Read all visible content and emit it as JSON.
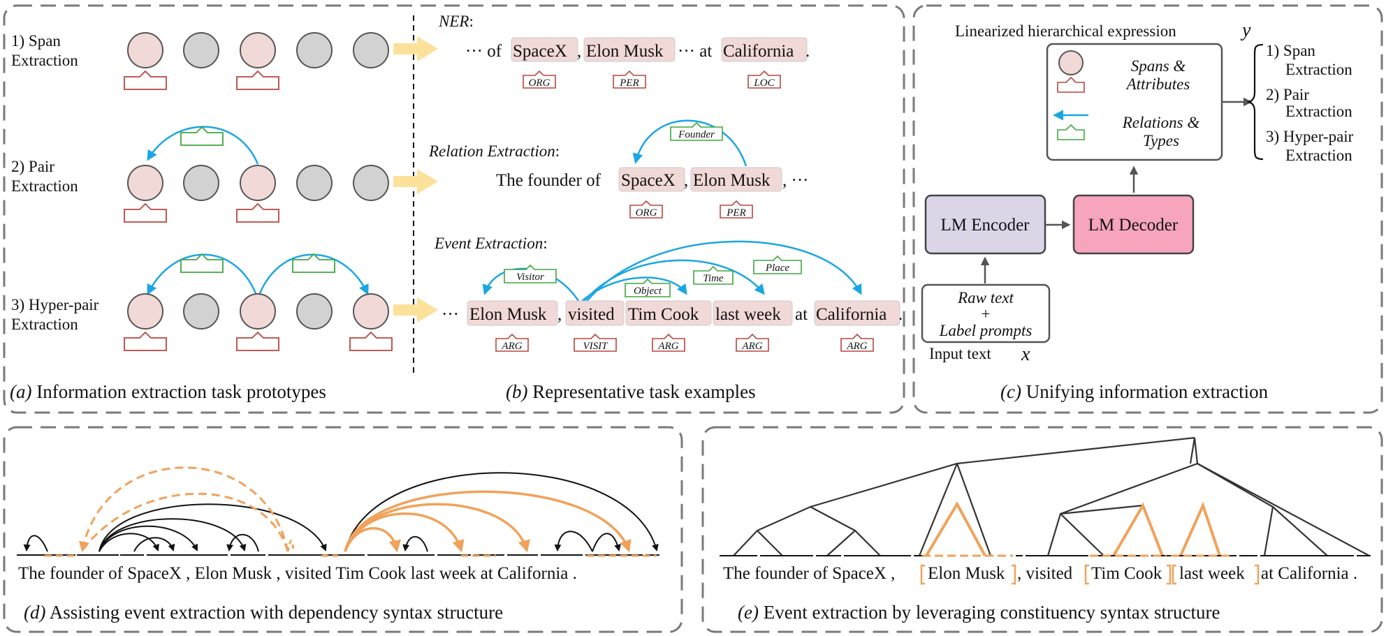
{
  "panel_a": {
    "caption_label": "(a)",
    "caption_text": "Information extraction task prototypes",
    "row1": [
      "1) Span",
      "Extraction"
    ],
    "row2": [
      "2) Pair",
      "Extraction"
    ],
    "row3": [
      "3) Hyper-pair",
      "Extraction"
    ]
  },
  "panel_b": {
    "caption_label": "(b)",
    "caption_text": "Representative task examples",
    "ner": {
      "title": "NER",
      "title_suffix": ":",
      "lead": "··· of",
      "span1": "SpaceX",
      "sep1": ",",
      "span2": "Elon Musk",
      "mid": "··· at",
      "span3": "California",
      "end": ".",
      "tag1": "ORG",
      "tag2": "PER",
      "tag3": "LOC"
    },
    "re": {
      "title": "Relation Extraction",
      "title_suffix": ":",
      "lead": "The founder of",
      "span1": "SpaceX",
      "sep1": ",",
      "span2": "Elon Musk",
      "end": ", ···",
      "tag1": "ORG",
      "tag2": "PER",
      "relation": "Founder"
    },
    "ee": {
      "title": "Event Extraction",
      "title_suffix": ":",
      "lead": "···",
      "span1": "Elon Musk",
      "sep1": ",",
      "trigger": "visited",
      "span2": "Tim Cook",
      "span3": "last week",
      "mid": "at",
      "span4": "California",
      "end": ".",
      "tag1": "ARG",
      "tag_trigger": "VISIT",
      "tag2": "ARG",
      "tag3": "ARG",
      "tag4": "ARG",
      "roles": [
        "Visitor",
        "Object",
        "Time",
        "Place"
      ]
    }
  },
  "panel_c": {
    "caption_label": "(c)",
    "caption_text": "Unifying information extraction",
    "output_title": "Linearized hierarchical expression",
    "output_var": "y",
    "legend_spans": [
      "Spans &",
      "Attributes"
    ],
    "legend_rel": [
      "Relations &",
      "Types"
    ],
    "outputs": [
      "1) Span",
      "Extraction",
      "2) Pair",
      "Extraction",
      "3) Hyper-pair",
      "Extraction"
    ],
    "encoder": "LM Encoder",
    "decoder": "LM Decoder",
    "input_lines": [
      "Raw text",
      "+",
      "Label prompts"
    ],
    "input_title": "Input text",
    "input_var": "x",
    "colors": {
      "encoder": "#dcd5e8",
      "decoder": "#f6a5bd"
    }
  },
  "panel_d": {
    "caption_label": "(d)",
    "caption_text": "Assisting event extraction with dependency syntax structure",
    "sentence": "The founder of SpaceX , Elon Musk , visited Tim Cook last week at California ."
  },
  "panel_e": {
    "caption_label": "(e)",
    "caption_text": "Event extraction by leveraging constituency syntax structure",
    "words_a": "The founder of SpaceX ,",
    "bracket1": "Elon Musk",
    "words_b": ", visited",
    "bracket2": "Tim Cook",
    "bracket3": "last week",
    "words_c": "at California ."
  },
  "colors": {
    "span_fill": "#f1d9d7",
    "gray_node": "#d2d2d2",
    "red_tag": "#b8453f",
    "green_tag": "#3fa63f",
    "blue_arc": "#1aa6e3",
    "orange": "#f0a25a",
    "arrow_yellow": "#fbe19a",
    "dash_border": "#7a7a7a"
  }
}
